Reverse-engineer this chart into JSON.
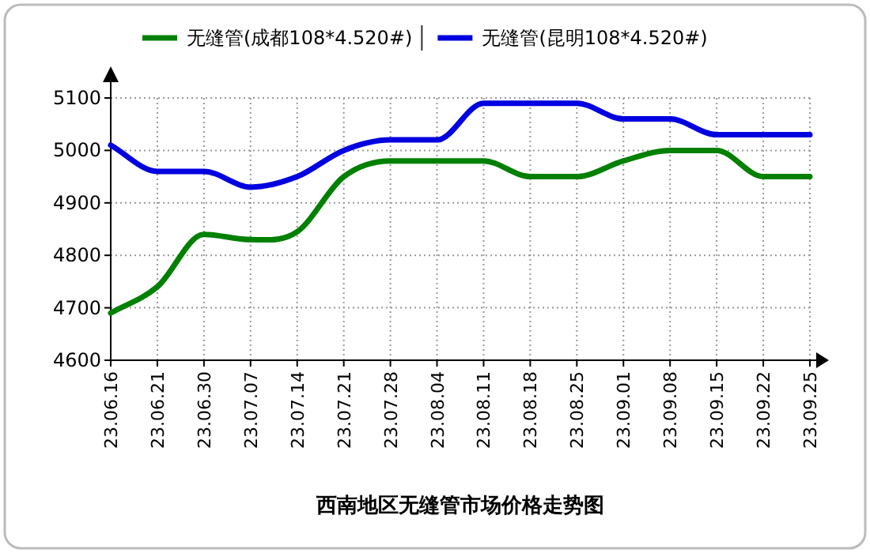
{
  "chart_data": {
    "type": "line",
    "title": "西南地区无缝管市场价格走势图",
    "categories": [
      "23.06.16",
      "23.06.21",
      "23.06.30",
      "23.07.07",
      "23.07.14",
      "23.07.21",
      "23.07.28",
      "23.08.04",
      "23.08.11",
      "23.08.18",
      "23.08.25",
      "23.09.01",
      "23.09.08",
      "23.09.15",
      "23.09.22",
      "23.09.25"
    ],
    "series": [
      {
        "name": "无缝管(成都108*4.520#)",
        "color": "#008000",
        "values": [
          4690,
          4740,
          4840,
          4830,
          4845,
          4950,
          4980,
          4980,
          4980,
          4950,
          4950,
          4980,
          5000,
          5000,
          4950,
          4950
        ]
      },
      {
        "name": "无缝管(昆明108*4.520#)",
        "color": "#0000e0",
        "values": [
          5010,
          4960,
          4960,
          4930,
          4950,
          5000,
          5020,
          5020,
          5090,
          5090,
          5090,
          5060,
          5060,
          5030,
          5030,
          5030
        ]
      }
    ],
    "ylim": [
      4600,
      5100
    ],
    "yticks": [
      4600,
      4700,
      4800,
      4900,
      5000,
      5100
    ],
    "grid": true,
    "legend": "top",
    "marker": "none",
    "line_style": "solid"
  }
}
